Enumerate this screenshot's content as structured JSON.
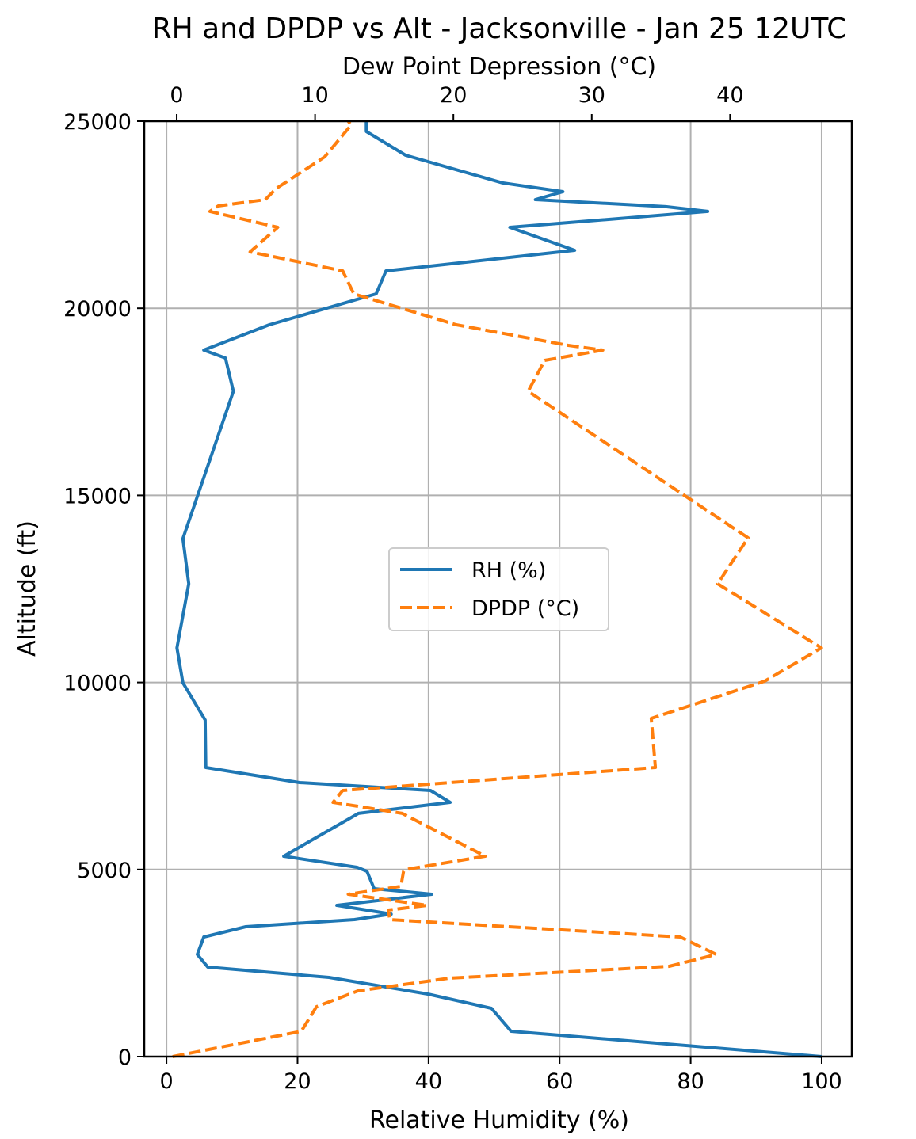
{
  "chart_data": {
    "type": "line",
    "title": "RH and DPDP vs Alt - Jacksonville - Jan 25 12UTC",
    "xlabel": "Relative Humidity (%)",
    "x2label": "Dew Point Depression (°C)",
    "ylabel": "Altitude (ft)",
    "xlim": [
      -3.4,
      104.6
    ],
    "x2lim": [
      -2.35,
      48.8
    ],
    "ylim": [
      0,
      25000
    ],
    "xticks": [
      0,
      20,
      40,
      60,
      80,
      100
    ],
    "x2ticks": [
      0,
      10,
      20,
      30,
      40
    ],
    "yticks": [
      0,
      5000,
      10000,
      15000,
      20000,
      25000
    ],
    "grid": true,
    "legend_position": "center",
    "series": [
      {
        "name": "RH (%)",
        "axis": "bottom",
        "color": "#1f77b4",
        "style": "solid",
        "points": [
          [
            100,
            0
          ],
          [
            52.6,
            678
          ],
          [
            49.6,
            1291
          ],
          [
            39.9,
            1672
          ],
          [
            24.8,
            2117
          ],
          [
            6.3,
            2392
          ],
          [
            4.7,
            2731
          ],
          [
            5.7,
            3197
          ],
          [
            12.1,
            3472
          ],
          [
            28.7,
            3663
          ],
          [
            34.3,
            3810
          ],
          [
            26.0,
            4043
          ],
          [
            40.5,
            4340
          ],
          [
            31.7,
            4488
          ],
          [
            30.6,
            4954
          ],
          [
            29.1,
            5060
          ],
          [
            17.9,
            5356
          ],
          [
            29.3,
            6500
          ],
          [
            43.3,
            6795
          ],
          [
            40.3,
            7113
          ],
          [
            20.3,
            7324
          ],
          [
            6.0,
            7727
          ],
          [
            5.9,
            8997
          ],
          [
            2.5,
            9992
          ],
          [
            1.6,
            10923
          ],
          [
            3.4,
            12638
          ],
          [
            2.5,
            13844
          ],
          [
            10.2,
            17781
          ],
          [
            9.0,
            18670
          ],
          [
            5.7,
            18882
          ],
          [
            15.7,
            19560
          ],
          [
            32.0,
            20385
          ],
          [
            33.5,
            21000
          ],
          [
            62.3,
            21550
          ],
          [
            52.4,
            22164
          ],
          [
            82.6,
            22588
          ],
          [
            76.2,
            22715
          ],
          [
            56.3,
            22905
          ],
          [
            60.5,
            23117
          ],
          [
            51.3,
            23350
          ],
          [
            36.5,
            24090
          ],
          [
            30.5,
            24725
          ],
          [
            30.5,
            25000
          ]
        ]
      },
      {
        "name": "DPDP (°C)",
        "axis": "top",
        "color": "#ff7f0e",
        "style": "dashed",
        "points": [
          [
            -0.3,
            0
          ],
          [
            9.0,
            678
          ],
          [
            10.1,
            1334
          ],
          [
            13.1,
            1757
          ],
          [
            19.7,
            2096
          ],
          [
            35.6,
            2413
          ],
          [
            39.0,
            2731
          ],
          [
            36.4,
            3197
          ],
          [
            15.4,
            3663
          ],
          [
            15.3,
            3916
          ],
          [
            18.1,
            4043
          ],
          [
            12.4,
            4340
          ],
          [
            16.2,
            4551
          ],
          [
            16.4,
            4954
          ],
          [
            16.8,
            5017
          ],
          [
            22.3,
            5356
          ],
          [
            16.3,
            6500
          ],
          [
            11.3,
            6795
          ],
          [
            12.0,
            7113
          ],
          [
            34.6,
            7727
          ],
          [
            34.3,
            9039
          ],
          [
            42.5,
            10034
          ],
          [
            46.6,
            10923
          ],
          [
            39.1,
            12638
          ],
          [
            41.3,
            13866
          ],
          [
            25.4,
            17781
          ],
          [
            26.6,
            18607
          ],
          [
            30.8,
            18882
          ],
          [
            28.3,
            19009
          ],
          [
            20.2,
            19560
          ],
          [
            12.8,
            20385
          ],
          [
            12.0,
            21000
          ],
          [
            5.3,
            21508
          ],
          [
            7.3,
            22164
          ],
          [
            2.4,
            22588
          ],
          [
            3.0,
            22736
          ],
          [
            6.4,
            22905
          ],
          [
            7.2,
            23202
          ],
          [
            10.7,
            24048
          ],
          [
            12.6,
            24894
          ],
          [
            12.4,
            25000
          ]
        ]
      }
    ]
  }
}
